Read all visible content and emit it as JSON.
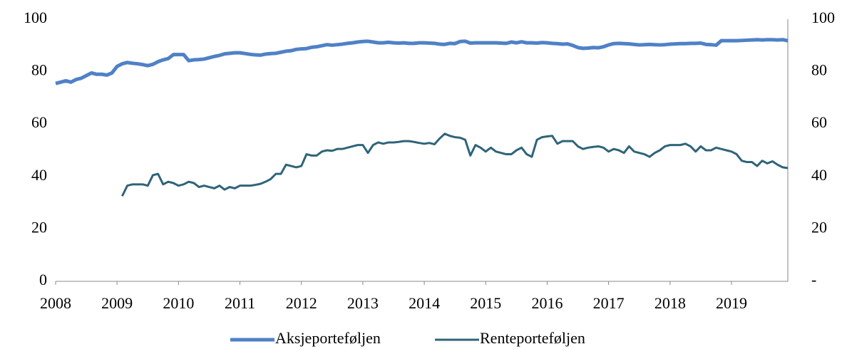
{
  "chart_data": {
    "type": "line",
    "categories": [
      "2008",
      null,
      null,
      null,
      null,
      null,
      null,
      null,
      null,
      null,
      null,
      null,
      "2009",
      null,
      null,
      null,
      null,
      null,
      null,
      null,
      null,
      null,
      null,
      null,
      "2010",
      null,
      null,
      null,
      null,
      null,
      null,
      null,
      null,
      null,
      null,
      null,
      "2011",
      null,
      null,
      null,
      null,
      null,
      null,
      null,
      null,
      null,
      null,
      null,
      "2012",
      null,
      null,
      null,
      null,
      null,
      null,
      null,
      null,
      null,
      null,
      null,
      "2013",
      null,
      null,
      null,
      null,
      null,
      null,
      null,
      null,
      null,
      null,
      null,
      "2014",
      null,
      null,
      null,
      null,
      null,
      null,
      null,
      null,
      null,
      null,
      null,
      "2015",
      null,
      null,
      null,
      null,
      null,
      null,
      null,
      null,
      null,
      null,
      null,
      "2016",
      null,
      null,
      null,
      null,
      null,
      null,
      null,
      null,
      null,
      null,
      null,
      "2017",
      null,
      null,
      null,
      null,
      null,
      null,
      null,
      null,
      null,
      null,
      null,
      "2018",
      null,
      null,
      null,
      null,
      null,
      null,
      null,
      null,
      null,
      null,
      null,
      "2019",
      null,
      null,
      null,
      null,
      null,
      null,
      null,
      null,
      null,
      null,
      null
    ],
    "series": [
      {
        "name": "Aksjeporteføljen",
        "color": "#4f81c7",
        "values": [
          75.5,
          76,
          76.5,
          76,
          77,
          77.5,
          78.5,
          79.5,
          79,
          79,
          78.7,
          79.5,
          82,
          83,
          83.5,
          83.2,
          83,
          82.7,
          82.3,
          82.8,
          83.8,
          84.5,
          85,
          86.5,
          86.5,
          86.5,
          84.2,
          84.5,
          84.6,
          84.8,
          85.3,
          85.8,
          86.2,
          86.8,
          87,
          87.2,
          87.2,
          86.9,
          86.6,
          86.4,
          86.3,
          86.7,
          86.9,
          87,
          87.4,
          87.8,
          88,
          88.5,
          88.7,
          88.8,
          89.3,
          89.5,
          89.9,
          90.3,
          90.1,
          90.3,
          90.5,
          90.8,
          91,
          91.3,
          91.5,
          91.6,
          91.3,
          91,
          91,
          91.2,
          91,
          90.9,
          91,
          90.8,
          90.8,
          91,
          91,
          90.9,
          90.8,
          90.5,
          90.4,
          90.8,
          90.7,
          91.5,
          91.6,
          90.9,
          91,
          91,
          91,
          91,
          91,
          90.9,
          90.8,
          91.3,
          91,
          91.4,
          91,
          91,
          90.9,
          91.1,
          91,
          90.8,
          90.7,
          90.5,
          90.6,
          90,
          89.2,
          88.9,
          89,
          89.2,
          89.1,
          89.5,
          90.2,
          90.7,
          90.8,
          90.7,
          90.6,
          90.4,
          90.2,
          90.3,
          90.4,
          90.3,
          90.2,
          90.3,
          90.5,
          90.6,
          90.7,
          90.7,
          90.8,
          90.8,
          90.9,
          90.4,
          90.3,
          90.1,
          91.8,
          91.8,
          91.8,
          91.8,
          91.9,
          92,
          92.1,
          92.2,
          92.1,
          92.2,
          92.2,
          92.1,
          92.2,
          91.8
        ]
      },
      {
        "name": "Renteporteføljen",
        "color": "#2f6479",
        "values": [
          null,
          null,
          null,
          null,
          null,
          null,
          null,
          null,
          null,
          null,
          null,
          null,
          null,
          32.5,
          36.5,
          37,
          37,
          37,
          36.5,
          40.5,
          41,
          37,
          38,
          37.5,
          36.5,
          37,
          38,
          37.5,
          36,
          36.5,
          36,
          35.5,
          36.5,
          35,
          36,
          35.5,
          36.5,
          36.5,
          36.5,
          36.8,
          37.2,
          38,
          39,
          41,
          41,
          44.5,
          44,
          43.5,
          44,
          48.5,
          48,
          48,
          49.5,
          50,
          49.8,
          50.5,
          50.5,
          51,
          51.5,
          52,
          52,
          49,
          52,
          53,
          52.5,
          53,
          53,
          53.2,
          53.5,
          53.5,
          53.2,
          52.8,
          52.5,
          52.8,
          52.3,
          54.5,
          56.3,
          55.5,
          55,
          54.8,
          54,
          48,
          52,
          51,
          49.5,
          51,
          49.5,
          49,
          48.5,
          48.5,
          50,
          51,
          48.5,
          47.5,
          54,
          55,
          55.3,
          55.5,
          52.5,
          53.5,
          53.5,
          53.5,
          51.5,
          50.5,
          51,
          51.3,
          51.5,
          51,
          49.5,
          50.5,
          50,
          49,
          51.5,
          49.5,
          49,
          48.5,
          47.5,
          49,
          50,
          51.5,
          52,
          52,
          52,
          52.5,
          51.5,
          49.5,
          51.5,
          50,
          50,
          51,
          50.5,
          50,
          49.5,
          48.5,
          46,
          45.5,
          45.5,
          44,
          46,
          45,
          45.8,
          44.5,
          43.5,
          43.2
        ]
      }
    ],
    "ylim": [
      0,
      100
    ],
    "yticks": [
      0,
      20,
      40,
      60,
      80,
      100
    ],
    "y2lim": [
      0,
      100
    ],
    "y2ticks": [
      {
        "value": 0,
        "label": "-"
      },
      20,
      40,
      60,
      80,
      100
    ],
    "legend": "bottom"
  }
}
